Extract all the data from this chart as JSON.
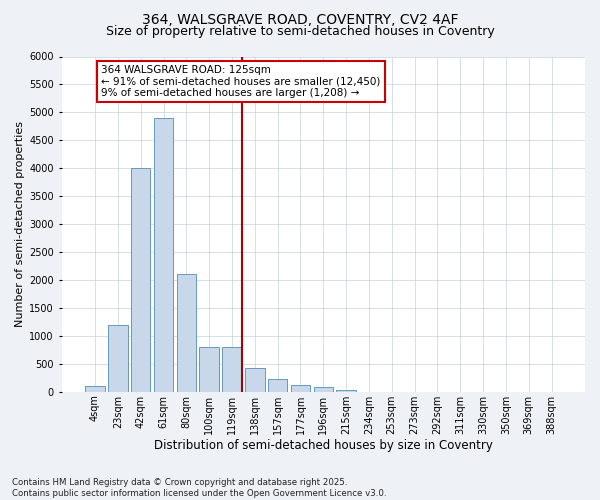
{
  "title_line1": "364, WALSGRAVE ROAD, COVENTRY, CV2 4AF",
  "title_line2": "Size of property relative to semi-detached houses in Coventry",
  "xlabel": "Distribution of semi-detached houses by size in Coventry",
  "ylabel": "Number of semi-detached properties",
  "categories": [
    "4sqm",
    "23sqm",
    "42sqm",
    "61sqm",
    "80sqm",
    "100sqm",
    "119sqm",
    "138sqm",
    "157sqm",
    "177sqm",
    "196sqm",
    "215sqm",
    "234sqm",
    "253sqm",
    "273sqm",
    "292sqm",
    "311sqm",
    "330sqm",
    "350sqm",
    "369sqm",
    "388sqm"
  ],
  "values": [
    100,
    1200,
    4000,
    4900,
    2100,
    800,
    800,
    420,
    220,
    130,
    80,
    30,
    0,
    0,
    0,
    0,
    0,
    0,
    0,
    0,
    0
  ],
  "bar_color": "#c8d8ea",
  "bar_edge_color": "#6699bb",
  "vline_x": 6,
  "vline_color": "#aa0000",
  "annotation_text": "364 WALSGRAVE ROAD: 125sqm\n← 91% of semi-detached houses are smaller (12,450)\n9% of semi-detached houses are larger (1,208) →",
  "annotation_box_color": "#cc0000",
  "annotation_fill": "white",
  "annotation_fontsize": 7.5,
  "ylim": [
    0,
    6000
  ],
  "yticks": [
    0,
    500,
    1000,
    1500,
    2000,
    2500,
    3000,
    3500,
    4000,
    4500,
    5000,
    5500,
    6000
  ],
  "footer_text": "Contains HM Land Registry data © Crown copyright and database right 2025.\nContains public sector information licensed under the Open Government Licence v3.0.",
  "background_color": "#eef2f6",
  "plot_bg_color": "#ffffff",
  "grid_color": "#c5d0dc",
  "title_fontsize": 10,
  "subtitle_fontsize": 9,
  "tick_fontsize": 7,
  "ylabel_fontsize": 8,
  "xlabel_fontsize": 8.5
}
